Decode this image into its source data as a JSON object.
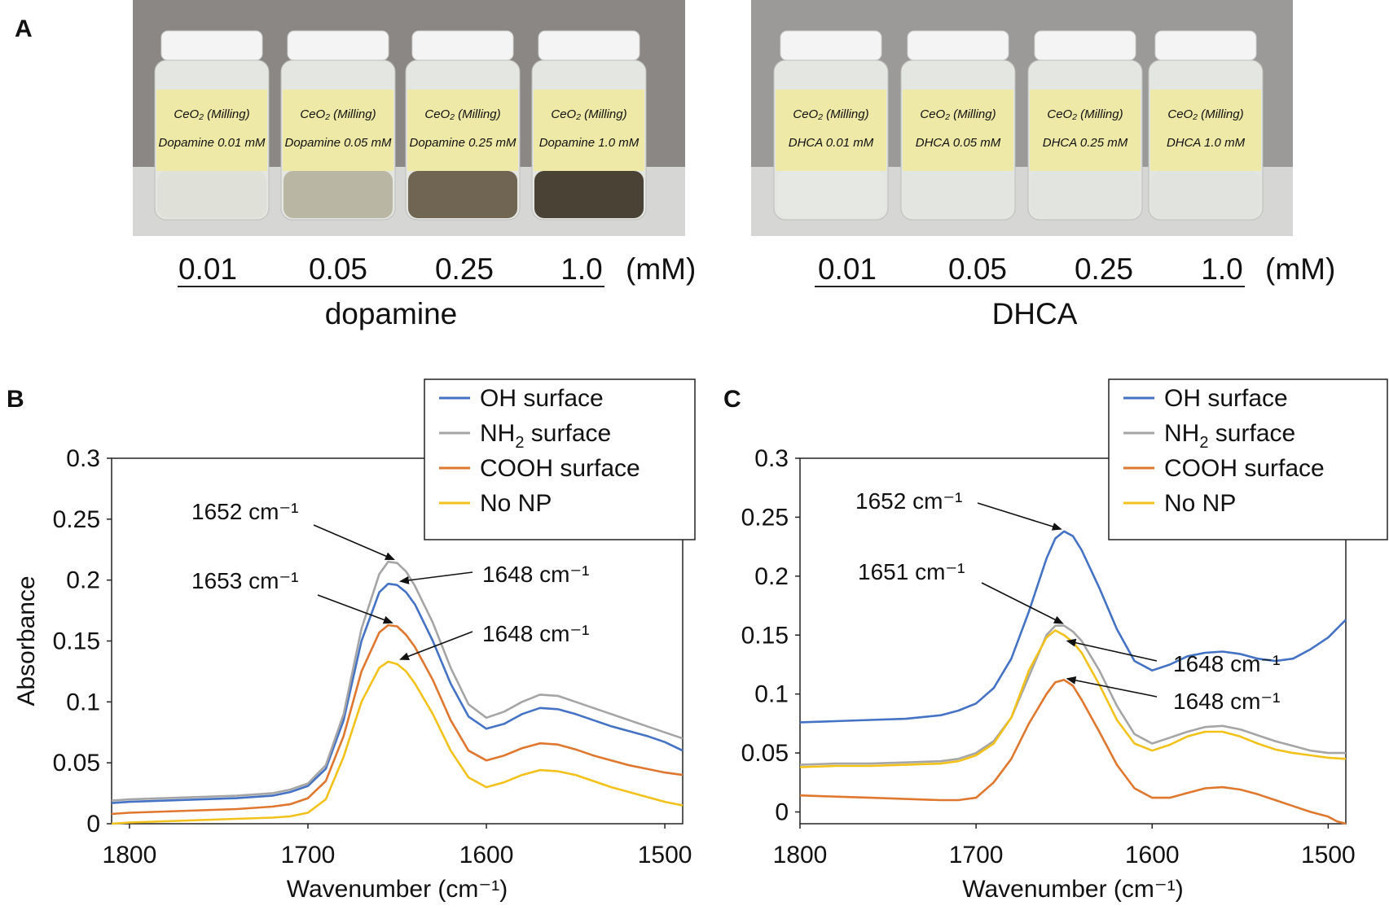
{
  "panels": {
    "A": {
      "letter": "A",
      "groups": [
        {
          "name": "dopamine",
          "unit": "(mM)",
          "concentrations": [
            "0.01",
            "0.05",
            "0.25",
            "1.0"
          ],
          "vial_labels": [
            {
              "line1": "CeO₂ (Milling)",
              "line2": "Dopamine 0.01 mM"
            },
            {
              "line1": "CeO₂ (Milling)",
              "line2": "Dopamine 0.05 mM"
            },
            {
              "line1": "CeO₂ (Milling)",
              "line2": "Dopamine 0.25 mM"
            },
            {
              "line1": "CeO₂ (Milling)",
              "line2": "Dopamine 1.0 mM"
            }
          ],
          "liquid_colors": [
            "#dfe0d8",
            "#b9b6a4",
            "#6f6552",
            "#4b4236"
          ],
          "background_color": "#8a8785"
        },
        {
          "name": "DHCA",
          "unit": "(mM)",
          "concentrations": [
            "0.01",
            "0.05",
            "0.25",
            "1.0"
          ],
          "vial_labels": [
            {
              "line1": "CeO₂ (Milling)",
              "line2": "DHCA 0.01 mM"
            },
            {
              "line1": "CeO₂ (Milling)",
              "line2": "DHCA 0.05 mM"
            },
            {
              "line1": "CeO₂ (Milling)",
              "line2": "DHCA 0.25 mM"
            },
            {
              "line1": "CeO₂ (Milling)",
              "line2": "DHCA 1.0 mM"
            }
          ],
          "liquid_colors": [
            "#e6e8e4",
            "#e3e5e1",
            "#e2e4e0",
            "#e1e3df"
          ],
          "background_color": "#9b9a98"
        }
      ]
    },
    "B": {
      "letter": "B"
    },
    "C": {
      "letter": "C"
    }
  },
  "colors": {
    "oh": "#4472c4",
    "nh2": "#a5a5a5",
    "cooh": "#e0772f",
    "nonp": "#f2c21b",
    "label_paper": "#eee9a6",
    "vial_cap": "#f4f4f4"
  },
  "chart_data": [
    {
      "panel": "B",
      "type": "line",
      "xlabel": "Wavenumber (cm⁻¹)",
      "ylabel": "Absorbance",
      "xlim": [
        1810,
        1490
      ],
      "ylim": [
        0,
        0.3
      ],
      "xticks": [
        "1800",
        "1700",
        "1600",
        "1500"
      ],
      "xtick_values": [
        1800,
        1700,
        1600,
        1500
      ],
      "yticks": [
        "0",
        "0.05",
        "0.1",
        "0.15",
        "0.2",
        "0.25",
        "0.3"
      ],
      "ytick_values": [
        0,
        0.05,
        0.1,
        0.15,
        0.2,
        0.25,
        0.3
      ],
      "legend": [
        {
          "label": "OH surface",
          "sub": ""
        },
        {
          "label": "NH",
          "sub": "2",
          "suffix": " surface"
        },
        {
          "label": "COOH surface",
          "sub": ""
        },
        {
          "label": "No NP",
          "sub": ""
        }
      ],
      "series": [
        {
          "name": "OH surface",
          "color": "#4472c4",
          "x": [
            1810,
            1800,
            1780,
            1760,
            1740,
            1720,
            1710,
            1700,
            1690,
            1680,
            1670,
            1660,
            1655,
            1650,
            1645,
            1640,
            1630,
            1620,
            1610,
            1600,
            1590,
            1580,
            1570,
            1560,
            1550,
            1540,
            1530,
            1520,
            1510,
            1500,
            1490
          ],
          "y": [
            0.017,
            0.018,
            0.019,
            0.02,
            0.021,
            0.023,
            0.026,
            0.031,
            0.045,
            0.085,
            0.15,
            0.19,
            0.197,
            0.196,
            0.19,
            0.18,
            0.15,
            0.115,
            0.088,
            0.078,
            0.082,
            0.09,
            0.095,
            0.094,
            0.09,
            0.085,
            0.08,
            0.076,
            0.072,
            0.067,
            0.06
          ]
        },
        {
          "name": "NH2 surface",
          "color": "#a5a5a5",
          "x": [
            1810,
            1800,
            1780,
            1760,
            1740,
            1720,
            1710,
            1700,
            1690,
            1680,
            1670,
            1660,
            1655,
            1650,
            1645,
            1640,
            1630,
            1620,
            1610,
            1600,
            1590,
            1580,
            1570,
            1560,
            1550,
            1540,
            1530,
            1520,
            1510,
            1500,
            1490
          ],
          "y": [
            0.019,
            0.02,
            0.021,
            0.022,
            0.023,
            0.025,
            0.028,
            0.033,
            0.048,
            0.09,
            0.16,
            0.205,
            0.215,
            0.214,
            0.207,
            0.195,
            0.165,
            0.128,
            0.098,
            0.087,
            0.092,
            0.1,
            0.106,
            0.105,
            0.1,
            0.095,
            0.09,
            0.085,
            0.08,
            0.075,
            0.07
          ]
        },
        {
          "name": "COOH surface",
          "color": "#e0772f",
          "x": [
            1810,
            1800,
            1780,
            1760,
            1740,
            1720,
            1710,
            1700,
            1690,
            1680,
            1670,
            1660,
            1655,
            1650,
            1645,
            1640,
            1630,
            1620,
            1610,
            1600,
            1590,
            1580,
            1570,
            1560,
            1550,
            1540,
            1530,
            1520,
            1510,
            1500,
            1490
          ],
          "y": [
            0.008,
            0.009,
            0.01,
            0.011,
            0.012,
            0.014,
            0.016,
            0.021,
            0.035,
            0.072,
            0.125,
            0.157,
            0.163,
            0.162,
            0.155,
            0.145,
            0.118,
            0.085,
            0.06,
            0.052,
            0.056,
            0.062,
            0.066,
            0.065,
            0.061,
            0.056,
            0.052,
            0.048,
            0.045,
            0.042,
            0.04
          ]
        },
        {
          "name": "No NP",
          "color": "#f2c21b",
          "x": [
            1810,
            1800,
            1780,
            1760,
            1740,
            1720,
            1710,
            1700,
            1690,
            1680,
            1670,
            1660,
            1655,
            1650,
            1645,
            1640,
            1630,
            1620,
            1610,
            1600,
            1590,
            1580,
            1570,
            1560,
            1550,
            1540,
            1530,
            1520,
            1510,
            1500,
            1490
          ],
          "y": [
            0.0,
            0.001,
            0.002,
            0.003,
            0.004,
            0.005,
            0.006,
            0.009,
            0.02,
            0.055,
            0.1,
            0.128,
            0.133,
            0.131,
            0.125,
            0.115,
            0.09,
            0.06,
            0.038,
            0.03,
            0.034,
            0.04,
            0.044,
            0.043,
            0.04,
            0.035,
            0.03,
            0.026,
            0.022,
            0.018,
            0.015
          ]
        }
      ],
      "annotations": [
        {
          "text": "1652 cm⁻¹",
          "target": [
            1652,
            0.217
          ]
        },
        {
          "text": "1648 cm⁻¹",
          "target": [
            1648,
            0.199
          ]
        },
        {
          "text": "1653 cm⁻¹",
          "target": [
            1653,
            0.165
          ]
        },
        {
          "text": "1648 cm⁻¹",
          "target": [
            1648,
            0.135
          ]
        }
      ]
    },
    {
      "panel": "C",
      "type": "line",
      "xlabel": "Wavenumber (cm⁻¹)",
      "ylabel": "",
      "xlim": [
        1800,
        1490
      ],
      "ylim": [
        -0.01,
        0.3
      ],
      "xticks": [
        "1800",
        "1700",
        "1600",
        "1500"
      ],
      "xtick_values": [
        1800,
        1700,
        1600,
        1500
      ],
      "yticks": [
        "0",
        "0.05",
        "0.1",
        "0.15",
        "0.2",
        "0.25",
        "0.3"
      ],
      "ytick_values": [
        0,
        0.05,
        0.1,
        0.15,
        0.2,
        0.25,
        0.3
      ],
      "legend": [
        {
          "label": "OH surface",
          "sub": ""
        },
        {
          "label": "NH",
          "sub": "2",
          "suffix": " surface"
        },
        {
          "label": "COOH surface",
          "sub": ""
        },
        {
          "label": "No NP",
          "sub": ""
        }
      ],
      "series": [
        {
          "name": "OH surface",
          "color": "#4472c4",
          "x": [
            1800,
            1780,
            1760,
            1740,
            1720,
            1710,
            1700,
            1690,
            1680,
            1670,
            1660,
            1655,
            1650,
            1645,
            1640,
            1630,
            1620,
            1610,
            1600,
            1590,
            1580,
            1570,
            1560,
            1550,
            1540,
            1530,
            1520,
            1510,
            1500,
            1490
          ],
          "y": [
            0.076,
            0.077,
            0.078,
            0.079,
            0.082,
            0.086,
            0.092,
            0.105,
            0.13,
            0.17,
            0.215,
            0.232,
            0.238,
            0.234,
            0.222,
            0.19,
            0.155,
            0.128,
            0.12,
            0.125,
            0.132,
            0.135,
            0.136,
            0.134,
            0.13,
            0.128,
            0.13,
            0.138,
            0.148,
            0.163
          ]
        },
        {
          "name": "NH2 surface",
          "color": "#a5a5a5",
          "x": [
            1800,
            1780,
            1760,
            1740,
            1720,
            1710,
            1700,
            1690,
            1680,
            1670,
            1660,
            1655,
            1650,
            1645,
            1640,
            1630,
            1620,
            1610,
            1600,
            1590,
            1580,
            1570,
            1560,
            1550,
            1540,
            1530,
            1520,
            1510,
            1500,
            1490
          ],
          "y": [
            0.04,
            0.041,
            0.041,
            0.042,
            0.043,
            0.045,
            0.05,
            0.06,
            0.08,
            0.115,
            0.15,
            0.158,
            0.158,
            0.153,
            0.145,
            0.12,
            0.09,
            0.066,
            0.058,
            0.063,
            0.068,
            0.072,
            0.073,
            0.07,
            0.065,
            0.06,
            0.056,
            0.052,
            0.05,
            0.05
          ]
        },
        {
          "name": "COOH surface",
          "color": "#e0772f",
          "x": [
            1800,
            1780,
            1760,
            1740,
            1720,
            1710,
            1700,
            1690,
            1680,
            1670,
            1660,
            1655,
            1650,
            1645,
            1640,
            1630,
            1620,
            1610,
            1600,
            1590,
            1580,
            1570,
            1560,
            1550,
            1540,
            1530,
            1520,
            1510,
            1500,
            1495,
            1490
          ],
          "y": [
            0.014,
            0.013,
            0.012,
            0.011,
            0.01,
            0.01,
            0.012,
            0.025,
            0.045,
            0.075,
            0.1,
            0.11,
            0.112,
            0.107,
            0.095,
            0.068,
            0.04,
            0.02,
            0.012,
            0.012,
            0.016,
            0.02,
            0.021,
            0.019,
            0.015,
            0.01,
            0.005,
            0.0,
            -0.004,
            -0.008,
            -0.01
          ]
        },
        {
          "name": "No NP",
          "color": "#f2c21b",
          "x": [
            1800,
            1780,
            1760,
            1740,
            1720,
            1710,
            1700,
            1690,
            1680,
            1670,
            1660,
            1655,
            1650,
            1645,
            1640,
            1630,
            1620,
            1610,
            1600,
            1590,
            1580,
            1570,
            1560,
            1550,
            1540,
            1530,
            1520,
            1510,
            1500,
            1490
          ],
          "y": [
            0.038,
            0.039,
            0.039,
            0.04,
            0.041,
            0.043,
            0.048,
            0.058,
            0.08,
            0.12,
            0.148,
            0.154,
            0.15,
            0.144,
            0.135,
            0.108,
            0.078,
            0.058,
            0.052,
            0.057,
            0.064,
            0.068,
            0.068,
            0.064,
            0.058,
            0.053,
            0.05,
            0.048,
            0.046,
            0.045
          ]
        }
      ],
      "annotations": [
        {
          "text": "1652 cm⁻¹",
          "target": [
            1652,
            0.24
          ]
        },
        {
          "text": "1651 cm⁻¹",
          "target": [
            1651,
            0.16
          ]
        },
        {
          "text": "1648 cm⁻¹",
          "target": [
            1648,
            0.145
          ]
        },
        {
          "text": "1648 cm⁻¹",
          "target": [
            1648,
            0.113
          ]
        }
      ]
    }
  ]
}
